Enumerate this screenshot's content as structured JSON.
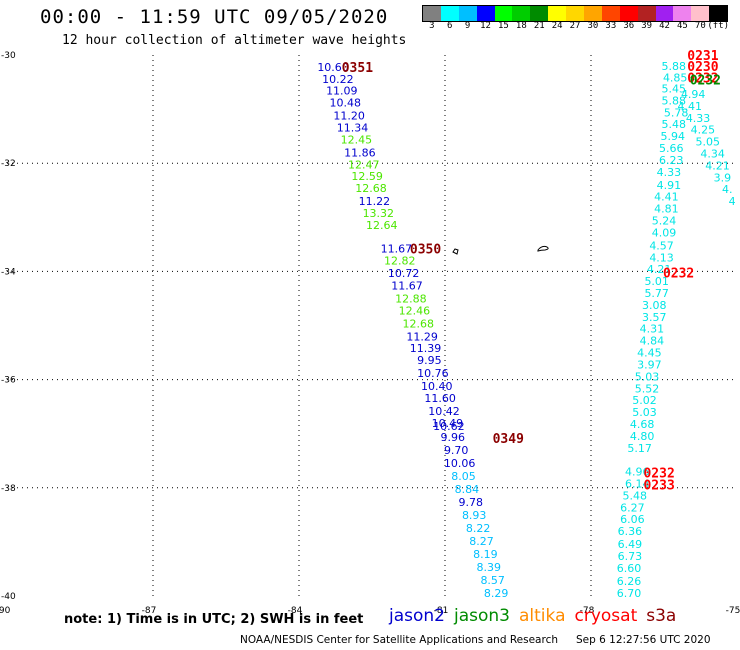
{
  "header": {
    "title": "00:00 - 11:59 UTC 09/05/2020",
    "subtitle": "12 hour collection of altimeter wave heights"
  },
  "legend": {
    "labels": [
      "3",
      "6",
      "9",
      "12",
      "15",
      "18",
      "21",
      "24",
      "27",
      "30",
      "33",
      "36",
      "39",
      "42",
      "45",
      "70",
      "(ft)"
    ],
    "colors": [
      "#808080",
      "#00ffff",
      "#00bfff",
      "#0000ff",
      "#00ff00",
      "#00cd00",
      "#008b00",
      "#ffff00",
      "#ffd700",
      "#ffa500",
      "#ff4500",
      "#ff0000",
      "#b22222",
      "#a020f0",
      "#ee82ee",
      "#ffc0cb",
      "#000000"
    ]
  },
  "axes": {
    "x_ticks": [
      "-90",
      "-87",
      "-84",
      "-81",
      "-78",
      "-75"
    ],
    "y_ticks": [
      "-30",
      "-32",
      "-34",
      "-36",
      "-38",
      "-40"
    ],
    "lon_range": [
      -90,
      -75
    ],
    "lat_range": [
      -40,
      -30
    ]
  },
  "tracks": [
    {
      "satellite": "jason2",
      "points": [
        {
          "lon": -83.3,
          "lat": -30.22,
          "v": "10.60",
          "c": "#0000cd"
        },
        {
          "lon": -83.2,
          "lat": -30.44,
          "v": "10.22",
          "c": "#0000cd"
        },
        {
          "lon": -83.12,
          "lat": -30.66,
          "v": "11.09",
          "c": "#0000cd"
        },
        {
          "lon": -83.05,
          "lat": -30.88,
          "v": "10.48",
          "c": "#0000cd"
        },
        {
          "lon": -82.97,
          "lat": -31.12,
          "v": "11.20",
          "c": "#0000cd"
        },
        {
          "lon": -82.9,
          "lat": -31.34,
          "v": "11.34",
          "c": "#0000cd"
        },
        {
          "lon": -82.82,
          "lat": -31.56,
          "v": "12.45",
          "c": "#4ce600"
        },
        {
          "lon": -82.75,
          "lat": -31.8,
          "v": "11.86",
          "c": "#0000cd"
        },
        {
          "lon": -82.67,
          "lat": -32.02,
          "v": "12.47",
          "c": "#4ce600"
        },
        {
          "lon": -82.6,
          "lat": -32.24,
          "v": "12.59",
          "c": "#4ce600"
        },
        {
          "lon": -82.52,
          "lat": -32.46,
          "v": "12.68",
          "c": "#4ce600"
        },
        {
          "lon": -82.45,
          "lat": -32.7,
          "v": "11.22",
          "c": "#0000cd"
        },
        {
          "lon": -82.37,
          "lat": -32.92,
          "v": "13.32",
          "c": "#4ce600"
        },
        {
          "lon": -82.3,
          "lat": -33.14,
          "v": "12.64",
          "c": "#4ce600"
        },
        {
          "lon": -82.0,
          "lat": -33.58,
          "v": "11.67",
          "c": "#0000cd"
        },
        {
          "lon": -81.93,
          "lat": -33.8,
          "v": "12.82",
          "c": "#4ce600"
        },
        {
          "lon": -81.85,
          "lat": -34.03,
          "v": "10.72",
          "c": "#0000cd"
        },
        {
          "lon": -81.78,
          "lat": -34.26,
          "v": "11.67",
          "c": "#0000cd"
        },
        {
          "lon": -81.7,
          "lat": -34.5,
          "v": "12.88",
          "c": "#4ce600"
        },
        {
          "lon": -81.63,
          "lat": -34.72,
          "v": "12.46",
          "c": "#4ce600"
        },
        {
          "lon": -81.55,
          "lat": -34.96,
          "v": "12.68",
          "c": "#4ce600"
        },
        {
          "lon": -81.47,
          "lat": -35.2,
          "v": "11.29",
          "c": "#0000cd"
        },
        {
          "lon": -81.4,
          "lat": -35.42,
          "v": "11.39",
          "c": "#0000cd"
        },
        {
          "lon": -81.32,
          "lat": -35.64,
          "v": "9.95",
          "c": "#0000cd"
        },
        {
          "lon": -81.25,
          "lat": -35.88,
          "v": "10.76",
          "c": "#0000cd"
        },
        {
          "lon": -81.17,
          "lat": -36.12,
          "v": "10.40",
          "c": "#0000cd"
        },
        {
          "lon": -81.1,
          "lat": -36.34,
          "v": "11.60",
          "c": "#0000cd"
        },
        {
          "lon": -81.02,
          "lat": -36.58,
          "v": "10.42",
          "c": "#0000cd"
        },
        {
          "lon": -80.95,
          "lat": -36.8,
          "v": "10.49",
          "c": "#0000cd"
        },
        {
          "lon": -80.92,
          "lat": -36.86,
          "v": "10.62",
          "c": "#0000cd"
        },
        {
          "lon": -80.84,
          "lat": -37.06,
          "v": "9.96",
          "c": "#0000cd"
        },
        {
          "lon": -80.77,
          "lat": -37.3,
          "v": "9.70",
          "c": "#0000cd"
        },
        {
          "lon": -80.7,
          "lat": -37.54,
          "v": "10.06",
          "c": "#0000cd"
        },
        {
          "lon": -80.62,
          "lat": -37.78,
          "v": "8.05",
          "c": "#00bfff"
        },
        {
          "lon": -80.55,
          "lat": -38.02,
          "v": "8.84",
          "c": "#00bfff"
        },
        {
          "lon": -80.47,
          "lat": -38.26,
          "v": "9.78",
          "c": "#0000cd"
        },
        {
          "lon": -80.4,
          "lat": -38.5,
          "v": "8.93",
          "c": "#00bfff"
        },
        {
          "lon": -80.32,
          "lat": -38.74,
          "v": "8.22",
          "c": "#00bfff"
        },
        {
          "lon": -80.25,
          "lat": -38.98,
          "v": "8.27",
          "c": "#00bfff"
        },
        {
          "lon": -80.17,
          "lat": -39.22,
          "v": "8.19",
          "c": "#00bfff"
        },
        {
          "lon": -80.1,
          "lat": -39.46,
          "v": "8.39",
          "c": "#00bfff"
        },
        {
          "lon": -80.02,
          "lat": -39.7,
          "v": "8.57",
          "c": "#00bfff"
        },
        {
          "lon": -79.95,
          "lat": -39.94,
          "v": "8.29",
          "c": "#00bfff"
        }
      ]
    },
    {
      "satellite": "cryosat-left",
      "points": [
        {
          "lon": -76.3,
          "lat": -30.2,
          "v": "5.88",
          "c": "#00e5e5"
        },
        {
          "lon": -76.27,
          "lat": -30.42,
          "v": "4.85",
          "c": "#00e5e5"
        },
        {
          "lon": -76.3,
          "lat": -30.62,
          "v": "5.45",
          "c": "#00e5e5"
        },
        {
          "lon": -76.3,
          "lat": -30.84,
          "v": "5.88",
          "c": "#00e5e5"
        },
        {
          "lon": -76.25,
          "lat": -31.06,
          "v": "5.78",
          "c": "#00e5e5"
        },
        {
          "lon": -76.3,
          "lat": -31.28,
          "v": "5.48",
          "c": "#00e5e5"
        },
        {
          "lon": -76.32,
          "lat": -31.5,
          "v": "5.94",
          "c": "#00e5e5"
        },
        {
          "lon": -76.35,
          "lat": -31.72,
          "v": "5.66",
          "c": "#00e5e5"
        },
        {
          "lon": -76.35,
          "lat": -31.94,
          "v": "6.23",
          "c": "#00e5e5"
        },
        {
          "lon": -76.4,
          "lat": -32.16,
          "v": "4.33",
          "c": "#00e5e5"
        },
        {
          "lon": -76.4,
          "lat": -32.4,
          "v": "4.91",
          "c": "#00e5e5"
        },
        {
          "lon": -76.45,
          "lat": -32.62,
          "v": "4.41",
          "c": "#00e5e5"
        },
        {
          "lon": -76.45,
          "lat": -32.84,
          "v": "4.81",
          "c": "#00e5e5"
        },
        {
          "lon": -76.5,
          "lat": -33.06,
          "v": "5.24",
          "c": "#00e5e5"
        },
        {
          "lon": -76.5,
          "lat": -33.28,
          "v": "4.09",
          "c": "#00e5e5"
        },
        {
          "lon": -76.55,
          "lat": -33.52,
          "v": "4.57",
          "c": "#00e5e5"
        },
        {
          "lon": -76.55,
          "lat": -33.74,
          "v": "4.13",
          "c": "#00e5e5"
        },
        {
          "lon": -76.6,
          "lat": -33.96,
          "v": "4.21",
          "c": "#00e5e5"
        },
        {
          "lon": -76.65,
          "lat": -34.18,
          "v": "5.01",
          "c": "#00e5e5"
        },
        {
          "lon": -76.65,
          "lat": -34.4,
          "v": "5.77",
          "c": "#00e5e5"
        },
        {
          "lon": -76.7,
          "lat": -34.62,
          "v": "3.08",
          "c": "#00e5e5"
        },
        {
          "lon": -76.7,
          "lat": -34.84,
          "v": "3.57",
          "c": "#00e5e5"
        },
        {
          "lon": -76.75,
          "lat": -35.06,
          "v": "4.31",
          "c": "#00e5e5"
        },
        {
          "lon": -76.75,
          "lat": -35.28,
          "v": "4.84",
          "c": "#00e5e5"
        },
        {
          "lon": -76.8,
          "lat": -35.5,
          "v": "4.45",
          "c": "#00e5e5"
        },
        {
          "lon": -76.8,
          "lat": -35.72,
          "v": "3.97",
          "c": "#00e5e5"
        },
        {
          "lon": -76.85,
          "lat": -35.94,
          "v": "5.03",
          "c": "#00e5e5"
        },
        {
          "lon": -76.85,
          "lat": -36.16,
          "v": "5.52",
          "c": "#00e5e5"
        },
        {
          "lon": -76.9,
          "lat": -36.38,
          "v": "5.02",
          "c": "#00e5e5"
        },
        {
          "lon": -76.9,
          "lat": -36.6,
          "v": "5.03",
          "c": "#00e5e5"
        },
        {
          "lon": -76.95,
          "lat": -36.82,
          "v": "4.68",
          "c": "#00e5e5"
        },
        {
          "lon": -76.95,
          "lat": -37.04,
          "v": "4.80",
          "c": "#00e5e5"
        },
        {
          "lon": -77.0,
          "lat": -37.26,
          "v": "5.17",
          "c": "#00e5e5"
        },
        {
          "lon": -77.05,
          "lat": -37.7,
          "v": "4.96",
          "c": "#00e5e5"
        },
        {
          "lon": -77.05,
          "lat": -37.92,
          "v": "6.14",
          "c": "#00e5e5"
        },
        {
          "lon": -77.1,
          "lat": -38.14,
          "v": "5.48",
          "c": "#00e5e5"
        },
        {
          "lon": -77.15,
          "lat": -38.36,
          "v": "6.27",
          "c": "#00e5e5"
        },
        {
          "lon": -77.15,
          "lat": -38.58,
          "v": "6.06",
          "c": "#00e5e5"
        },
        {
          "lon": -77.2,
          "lat": -38.8,
          "v": "6.36",
          "c": "#00e5e5"
        },
        {
          "lon": -77.2,
          "lat": -39.04,
          "v": "6.49",
          "c": "#00e5e5"
        },
        {
          "lon": -77.2,
          "lat": -39.26,
          "v": "6.73",
          "c": "#00e5e5"
        },
        {
          "lon": -77.22,
          "lat": -39.48,
          "v": "6.60",
          "c": "#00e5e5"
        },
        {
          "lon": -77.22,
          "lat": -39.72,
          "v": "6.26",
          "c": "#00e5e5"
        },
        {
          "lon": -77.22,
          "lat": -39.94,
          "v": "6.70",
          "c": "#00e5e5"
        }
      ]
    },
    {
      "satellite": "cryosat-right",
      "points": [
        {
          "lon": -75.9,
          "lat": -30.72,
          "v": "4.94",
          "c": "#00e5e5"
        },
        {
          "lon": -75.97,
          "lat": -30.94,
          "v": "4.41",
          "c": "#00e5e5"
        },
        {
          "lon": -75.8,
          "lat": -31.16,
          "v": "4.33",
          "c": "#00e5e5"
        },
        {
          "lon": -75.7,
          "lat": -31.38,
          "v": "4.25",
          "c": "#00e5e5"
        },
        {
          "lon": -75.6,
          "lat": -31.6,
          "v": "5.05",
          "c": "#00e5e5"
        },
        {
          "lon": -75.5,
          "lat": -31.82,
          "v": "4.34",
          "c": "#00e5e5"
        },
        {
          "lon": -75.4,
          "lat": -32.04,
          "v": "4.21",
          "c": "#00e5e5"
        },
        {
          "lon": -75.3,
          "lat": -32.26,
          "v": "3.9",
          "c": "#00e5e5"
        },
        {
          "lon": -75.2,
          "lat": -32.48,
          "v": "4.",
          "c": "#00e5e5"
        },
        {
          "lon": -75.1,
          "lat": -32.7,
          "v": "4",
          "c": "#00e5e5"
        }
      ]
    }
  ],
  "time_labels": [
    {
      "lon": -82.8,
      "lat": -30.22,
      "t": "0351",
      "c": "#8b0000"
    },
    {
      "lon": -81.4,
      "lat": -33.58,
      "t": "0350",
      "c": "#8b0000"
    },
    {
      "lon": -79.7,
      "lat": -37.08,
      "t": "0349",
      "c": "#8b0000"
    },
    {
      "lon": -75.7,
      "lat": -30.0,
      "t": "0231",
      "c": "#ff0000"
    },
    {
      "lon": -75.7,
      "lat": -30.2,
      "t": "0230",
      "c": "#ff0000"
    },
    {
      "lon": -75.7,
      "lat": -30.42,
      "t": "0232",
      "c": "#ff0000"
    },
    {
      "lon": -75.65,
      "lat": -30.45,
      "t": "0232",
      "c": "#008b00"
    },
    {
      "lon": -76.2,
      "lat": -34.02,
      "t": "0232",
      "c": "#ff0000"
    },
    {
      "lon": -76.6,
      "lat": -37.72,
      "t": "0232",
      "c": "#ff0000"
    },
    {
      "lon": -76.6,
      "lat": -37.94,
      "t": "0233",
      "c": "#ff0000"
    }
  ],
  "footer": {
    "note": "note: 1) Time is in UTC; 2) SWH is in feet",
    "satellites": [
      {
        "name": "jason2",
        "color": "#0000cd"
      },
      {
        "name": "jason3",
        "color": "#008b00"
      },
      {
        "name": "altika",
        "color": "#ff8c00"
      },
      {
        "name": "cryosat",
        "color": "#ff0000"
      },
      {
        "name": "s3a",
        "color": "#8b0000"
      }
    ],
    "credit_org": "NOAA/NESDIS Center for Satellite Applications and Research",
    "credit_time": "Sep  6 12:27:56 UTC 2020"
  }
}
